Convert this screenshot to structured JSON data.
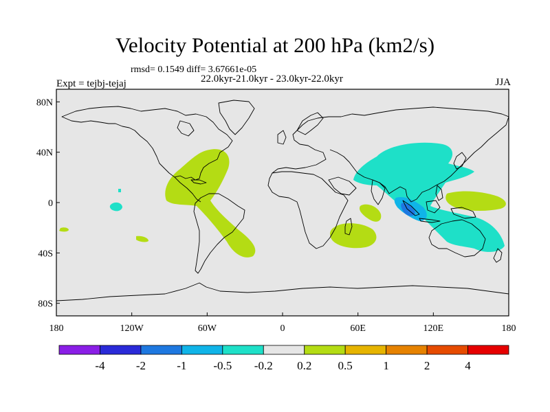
{
  "title": "Velocity Potential at 200 hPa (km2/s)",
  "stats": "rmsd= 0.1549 diff= 3.67661e-05",
  "period": "22.0kyr-21.0kyr - 23.0kyr-22.0kyr",
  "experiment": "Expt = tejbj-tejaj",
  "season": "JJA",
  "lat_labels": [
    {
      "value": 80,
      "label": "80N"
    },
    {
      "value": 40,
      "label": "40N"
    },
    {
      "value": 0,
      "label": "0"
    },
    {
      "value": -40,
      "label": "40S"
    },
    {
      "value": -80,
      "label": "80S"
    }
  ],
  "lon_labels": [
    {
      "value": -180,
      "label": "180"
    },
    {
      "value": -120,
      "label": "120W"
    },
    {
      "value": -60,
      "label": "60W"
    },
    {
      "value": 0,
      "label": "0"
    },
    {
      "value": 60,
      "label": "60E"
    },
    {
      "value": 120,
      "label": "120E"
    },
    {
      "value": 180,
      "label": "180"
    }
  ],
  "colorbar": {
    "colors": [
      "#8a1ee6",
      "#2a2ad8",
      "#1e78e0",
      "#10b4e8",
      "#1ee0c8",
      "#e6e6e6",
      "#b4dc14",
      "#e6b400",
      "#e68200",
      "#e64b00",
      "#e60000"
    ],
    "labels": [
      "-4",
      "-2",
      "-1",
      "-0.5",
      "-0.2",
      "0.2",
      "0.5",
      "1",
      "2",
      "4"
    ]
  },
  "colors": {
    "background": "#e6e6e6",
    "positive": "#b4dc14",
    "negative_weak": "#1ee0c8",
    "negative_mid": "#10b4e8",
    "negative_strong": "#1e78e0"
  }
}
